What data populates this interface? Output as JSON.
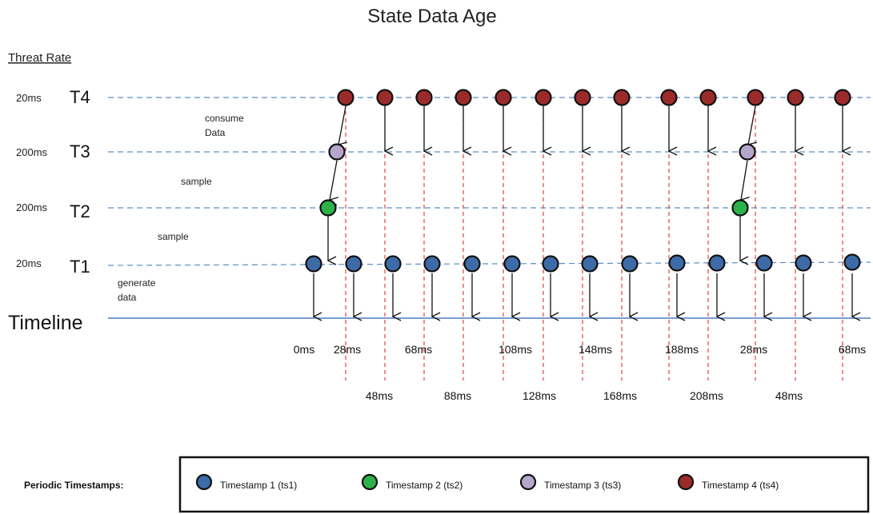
{
  "title": "State Data Age",
  "rate_heading": "Threat Rate",
  "rows": [
    {
      "id": "T4",
      "label": "T4",
      "rate": "20ms"
    },
    {
      "id": "T3",
      "label": "T3",
      "rate": "200ms"
    },
    {
      "id": "T2",
      "label": "T2",
      "rate": "200ms"
    },
    {
      "id": "T1",
      "label": "T1",
      "rate": "20ms"
    }
  ],
  "timeline_label": "Timeline",
  "annotations": {
    "consume": [
      "consume",
      "Data"
    ],
    "sample_upper": "sample",
    "sample_lower": "sample",
    "generate": [
      "generate",
      "data"
    ]
  },
  "time_labels_row1": [
    "0ms",
    "28ms",
    "68ms",
    "108ms",
    "148ms",
    "188ms",
    "28ms",
    "68ms"
  ],
  "time_labels_row2": [
    "48ms",
    "88ms",
    "128ms",
    "168ms",
    "208ms",
    "48ms"
  ],
  "legend": {
    "heading": "Periodic Timestamps:",
    "items": [
      {
        "label": "Timestamp 1 (ts1)",
        "color": "#3d6ba8"
      },
      {
        "label": "Timestamp 2 (ts2)",
        "color": "#2db24a"
      },
      {
        "label": "Timestamp 3 (ts3)",
        "color": "#b6a6cc"
      },
      {
        "label": "Timestamp 4 (ts4)",
        "color": "#9b2b2b"
      }
    ]
  },
  "colors": {
    "ts1": "#3d6ba8",
    "ts2": "#2db24a",
    "ts3": "#b6a6cc",
    "ts4": "#9b2b2b",
    "row_line": "#5b8fc7",
    "timeline": "#4a7dbd",
    "marker_line": "#e03030"
  }
}
